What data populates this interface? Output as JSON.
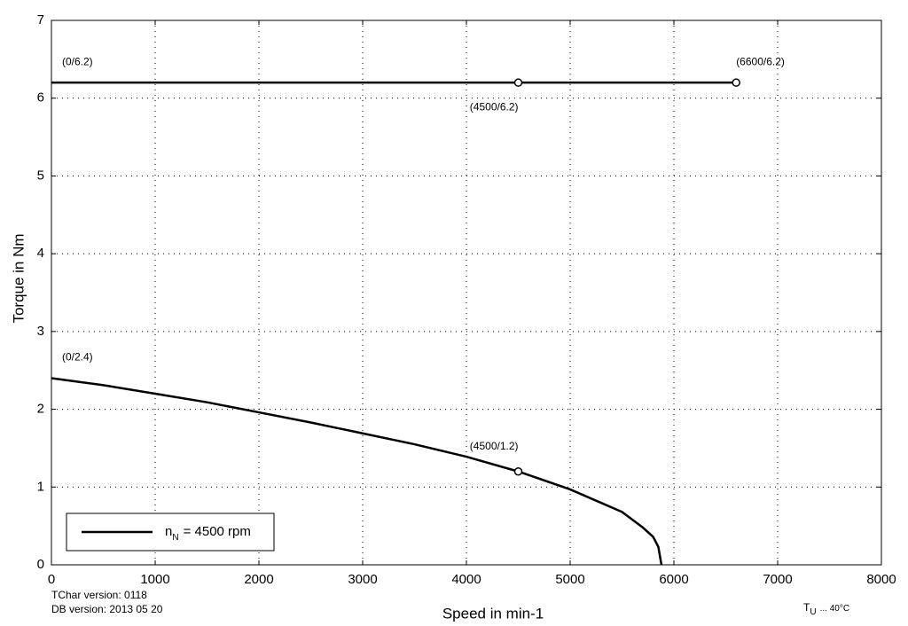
{
  "chart_data": {
    "type": "line",
    "xlabel": "Speed in min-1",
    "ylabel": "Torque in Nm",
    "xlim": [
      0,
      8000
    ],
    "ylim": [
      0,
      7
    ],
    "xticks": [
      0,
      1000,
      2000,
      3000,
      4000,
      5000,
      6000,
      7000,
      8000
    ],
    "yticks": [
      0,
      1,
      2,
      3,
      4,
      5,
      6,
      7
    ],
    "grid": true,
    "legend_position": "lower left",
    "series": [
      {
        "color": "#000000",
        "x": [
          0,
          4500,
          6600
        ],
        "values": [
          6.2,
          6.2,
          6.2
        ]
      },
      {
        "color": "#000000",
        "legend": {
          "symbol": "n",
          "subscript": "N",
          "text": "= 4500 rpm"
        },
        "x": [
          0,
          500,
          1000,
          1500,
          2000,
          2500,
          3000,
          3500,
          4000,
          4500,
          5000,
          5500,
          5700,
          5800,
          5850,
          5880
        ],
        "values": [
          2.4,
          2.31,
          2.2,
          2.09,
          1.96,
          1.83,
          1.69,
          1.55,
          1.39,
          1.2,
          0.97,
          0.68,
          0.48,
          0.36,
          0.23,
          0
        ]
      }
    ],
    "annotations": [
      {
        "text": "(0/6.2)",
        "x": 0,
        "y": 6.2,
        "position": "above-right",
        "marker": false
      },
      {
        "text": "(4500/6.2)",
        "x": 4500,
        "y": 6.2,
        "position": "below-left",
        "marker": true
      },
      {
        "text": "(6600/6.2)",
        "x": 6600,
        "y": 6.2,
        "position": "above-right",
        "marker": true
      },
      {
        "text": "(0/2.4)",
        "x": 0,
        "y": 2.4,
        "position": "above-right",
        "marker": false
      },
      {
        "text": "(4500/1.2)",
        "x": 4500,
        "y": 1.2,
        "position": "above-left",
        "marker": true
      }
    ],
    "footer": {
      "tchar": "TChar version: 0118",
      "db": "DB version: 2013 05 20",
      "temperature": {
        "symbol": "T",
        "subscript": "U",
        "text": "... 40°C"
      }
    }
  }
}
